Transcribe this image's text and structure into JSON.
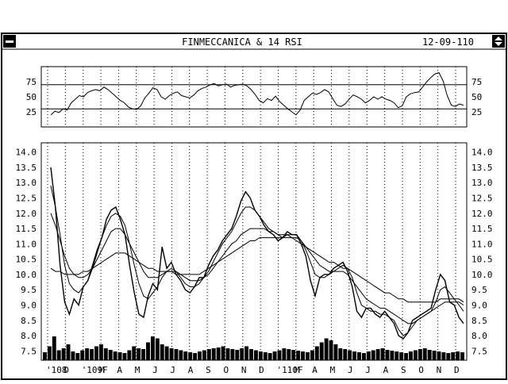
{
  "window": {
    "title": "FINMECCANICA & 14 RSI",
    "date": "12-09-110"
  },
  "chart_data": [
    {
      "type": "line",
      "name": "rsi-panel",
      "ylim": [
        0,
        100
      ],
      "yticks": [
        25,
        50,
        75
      ],
      "reference_lines": [
        30,
        70
      ],
      "grid": "vertical-dotted",
      "series": [
        {
          "values": [
            20,
            26,
            24,
            30,
            28,
            40,
            46,
            52,
            50,
            57,
            60,
            62,
            60,
            66,
            62,
            56,
            50,
            44,
            40,
            33,
            30,
            29,
            35,
            48,
            56,
            65,
            62,
            50,
            46,
            52,
            56,
            58,
            52,
            50,
            48,
            53,
            60,
            64,
            66,
            70,
            72,
            68,
            70,
            71,
            66,
            69,
            70,
            71,
            68,
            62,
            54,
            44,
            40,
            47,
            44,
            51,
            42,
            36,
            30,
            25,
            20,
            28,
            44,
            50,
            56,
            54,
            57,
            62,
            58,
            47,
            36,
            34,
            38,
            46,
            53,
            50,
            46,
            40,
            44,
            50,
            46,
            50,
            46,
            44,
            40,
            32,
            35,
            50,
            55,
            57,
            58,
            66,
            75,
            82,
            88,
            90,
            76,
            52,
            36,
            34,
            38,
            36
          ]
        }
      ]
    },
    {
      "type": "line",
      "name": "price-panel",
      "ylim": [
        7.2,
        14.3
      ],
      "yticks": [
        "7.5",
        "8.0",
        "8.5",
        "9.0",
        "9.5",
        "10.0",
        "10.5",
        "11.0",
        "11.5",
        "12.0",
        "12.5",
        "13.0",
        "13.5",
        "14.0"
      ],
      "xticks": [
        "'108",
        "D",
        "'109F",
        "M",
        "A",
        "M",
        "J",
        "J",
        "A",
        "S",
        "O",
        "N",
        "D",
        "'110F",
        "M",
        "A",
        "M",
        "J",
        "J",
        "A",
        "S",
        "O",
        "N",
        "D"
      ],
      "grid": "vertical-dotted",
      "series": [
        {
          "role": "price",
          "values": [
            13.5,
            12.2,
            10.3,
            9.1,
            8.7,
            9.2,
            9.0,
            9.6,
            9.8,
            10.3,
            10.8,
            11.2,
            11.8,
            12.1,
            12.2,
            11.8,
            11.3,
            10.3,
            9.4,
            8.7,
            8.6,
            9.3,
            9.7,
            9.5,
            10.9,
            10.2,
            10.4,
            10.0,
            9.8,
            9.5,
            9.4,
            9.6,
            9.9,
            9.9,
            10.3,
            10.6,
            10.8,
            11.1,
            11.3,
            11.5,
            11.9,
            12.4,
            12.7,
            12.5,
            12.1,
            11.9,
            11.6,
            11.4,
            11.3,
            11.1,
            11.2,
            11.4,
            11.3,
            11.3,
            11.0,
            10.6,
            9.8,
            9.3,
            9.9,
            10.0,
            10.0,
            10.2,
            10.3,
            10.4,
            10.1,
            9.6,
            8.8,
            8.6,
            8.9,
            8.9,
            8.7,
            8.6,
            8.8,
            8.6,
            8.4,
            8.0,
            7.9,
            8.1,
            8.5,
            8.6,
            8.7,
            8.8,
            8.9,
            9.5,
            10.0,
            9.8,
            9.1,
            9.0,
            8.6,
            8.4
          ]
        },
        {
          "role": "moving-average-short",
          "values": [
            12.9,
            12.2,
            11.3,
            10.3,
            9.7,
            9.5,
            9.4,
            9.6,
            9.8,
            10.2,
            10.7,
            11.2,
            11.6,
            11.9,
            12.0,
            11.9,
            11.6,
            11.0,
            10.3,
            9.7,
            9.3,
            9.2,
            9.4,
            9.6,
            9.9,
            10.1,
            10.2,
            10.1,
            9.9,
            9.7,
            9.6,
            9.6,
            9.7,
            9.9,
            10.1,
            10.4,
            10.7,
            11.0,
            11.2,
            11.4,
            11.7,
            12.0,
            12.2,
            12.2,
            12.1,
            11.9,
            11.7,
            11.5,
            11.4,
            11.3,
            11.2,
            11.3,
            11.3,
            11.3,
            11.1,
            10.8,
            10.4,
            10.0,
            9.9,
            9.9,
            10.0,
            10.1,
            10.2,
            10.3,
            10.2,
            9.9,
            9.4,
            9.0,
            8.9,
            8.8,
            8.8,
            8.7,
            8.7,
            8.6,
            8.5,
            8.2,
            8.0,
            8.1,
            8.3,
            8.5,
            8.6,
            8.7,
            8.8,
            9.1,
            9.5,
            9.6,
            9.4,
            9.2,
            9.0,
            8.8
          ]
        },
        {
          "role": "moving-average-medium",
          "values": [
            12.0,
            11.6,
            11.1,
            10.6,
            10.2,
            10.0,
            9.9,
            9.9,
            10.0,
            10.2,
            10.5,
            10.8,
            11.1,
            11.4,
            11.5,
            11.5,
            11.3,
            11.0,
            10.7,
            10.4,
            10.1,
            9.9,
            9.9,
            9.9,
            10.0,
            10.1,
            10.1,
            10.1,
            10.0,
            9.9,
            9.8,
            9.8,
            9.8,
            9.9,
            10.0,
            10.2,
            10.4,
            10.6,
            10.8,
            11.0,
            11.1,
            11.3,
            11.4,
            11.5,
            11.5,
            11.5,
            11.5,
            11.4,
            11.4,
            11.3,
            11.3,
            11.3,
            11.2,
            11.2,
            11.1,
            10.9,
            10.7,
            10.5,
            10.3,
            10.2,
            10.1,
            10.1,
            10.1,
            10.1,
            10.0,
            9.8,
            9.6,
            9.4,
            9.2,
            9.1,
            9.0,
            8.9,
            8.9,
            8.8,
            8.7,
            8.6,
            8.5,
            8.4,
            8.4,
            8.5,
            8.6,
            8.7,
            8.8,
            8.9,
            9.0,
            9.1,
            9.1,
            9.1,
            9.1,
            9.0
          ]
        },
        {
          "role": "moving-average-long",
          "values": [
            10.2,
            10.1,
            10.1,
            10.0,
            10.0,
            10.0,
            10.0,
            10.1,
            10.1,
            10.2,
            10.3,
            10.4,
            10.5,
            10.6,
            10.7,
            10.7,
            10.7,
            10.6,
            10.5,
            10.4,
            10.3,
            10.2,
            10.2,
            10.1,
            10.1,
            10.1,
            10.1,
            10.0,
            10.0,
            10.0,
            10.0,
            10.0,
            10.0,
            10.1,
            10.2,
            10.3,
            10.4,
            10.5,
            10.6,
            10.7,
            10.8,
            10.9,
            11.0,
            11.1,
            11.1,
            11.2,
            11.2,
            11.2,
            11.2,
            11.2,
            11.2,
            11.2,
            11.2,
            11.1,
            11.0,
            10.9,
            10.8,
            10.7,
            10.6,
            10.5,
            10.4,
            10.4,
            10.3,
            10.2,
            10.2,
            10.1,
            10.0,
            9.9,
            9.8,
            9.7,
            9.6,
            9.5,
            9.4,
            9.4,
            9.3,
            9.2,
            9.2,
            9.1,
            9.1,
            9.1,
            9.1,
            9.1,
            9.1,
            9.1,
            9.2,
            9.2,
            9.2,
            9.2,
            9.2,
            9.1
          ]
        }
      ],
      "volume": [
        20,
        35,
        60,
        25,
        30,
        40,
        22,
        18,
        25,
        30,
        28,
        35,
        40,
        30,
        26,
        22,
        20,
        18,
        25,
        35,
        30,
        28,
        45,
        60,
        55,
        40,
        35,
        30,
        28,
        25,
        22,
        20,
        18,
        22,
        25,
        28,
        30,
        32,
        35,
        30,
        28,
        26,
        30,
        35,
        28,
        25,
        22,
        20,
        18,
        22,
        25,
        30,
        28,
        26,
        24,
        22,
        20,
        25,
        35,
        45,
        55,
        50,
        40,
        30,
        28,
        25,
        22,
        20,
        18,
        22,
        25,
        28,
        30,
        26,
        24,
        22,
        20,
        18,
        22,
        25,
        28,
        30,
        26,
        24,
        22,
        20,
        18,
        20,
        22,
        20
      ]
    }
  ]
}
